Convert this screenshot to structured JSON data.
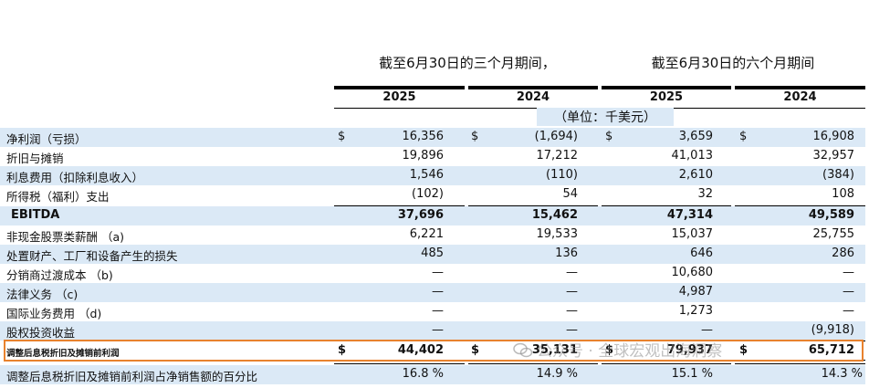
{
  "header": {
    "period_three_months": "截至6月30日的三个月期间，",
    "period_six_months": "截至6月30日的六个月期间",
    "years": [
      "2025",
      "2024",
      "2025",
      "2024"
    ],
    "unit": "（单位：千美元）"
  },
  "currency_symbol": "$",
  "rows": [
    {
      "label": "净利润（亏损）",
      "values": [
        "16,356",
        "(1,694)",
        "3,659",
        "16,908"
      ],
      "dollar": true
    },
    {
      "label": "折旧与摊销",
      "values": [
        "19,896",
        "17,212",
        "41,013",
        "32,957"
      ]
    },
    {
      "label": "利息费用（扣除利息收入）",
      "values": [
        "1,546",
        "(110)",
        "2,610",
        "(384)"
      ]
    },
    {
      "label": "所得税（福利）支出",
      "values": [
        "(102)",
        "54",
        "32",
        "108"
      ]
    },
    {
      "label": "EBITDA",
      "values": [
        "37,696",
        "15,462",
        "47,314",
        "49,589"
      ]
    },
    {
      "label": "非现金股票类薪酬 （a)",
      "values": [
        "6,221",
        "19,533",
        "15,037",
        "25,755"
      ]
    },
    {
      "label": "处置财产、工厂和设备产生的损失",
      "values": [
        "485",
        "136",
        "646",
        "286"
      ]
    },
    {
      "label": "分销商过渡成本 （b)",
      "values": [
        "—",
        "—",
        "10,680",
        "—"
      ]
    },
    {
      "label": "法律义务 （c)",
      "values": [
        "—",
        "—",
        "4,987",
        "—"
      ]
    },
    {
      "label": "国际业务费用 （d)",
      "values": [
        "—",
        "—",
        "1,273",
        "—"
      ]
    },
    {
      "label": "股权投资收益",
      "values": [
        "—",
        "—",
        "—",
        "(9,918)"
      ]
    },
    {
      "label": "调整后息税折旧及摊销前利润",
      "values": [
        "44,402",
        "35,131",
        "79,937",
        "65,712"
      ],
      "dollar": true
    },
    {
      "label": "调整后息税折旧及摊销前利润占净销售额的百分比",
      "values": [
        "16.8 %",
        "14.9 %",
        "15.1 %",
        "14.3 %"
      ]
    }
  ],
  "watermark": "公众号 · 全球宏观出海洞察",
  "colors": {
    "row_shade": "#dbe9f6",
    "highlight_border": "#e8822e"
  }
}
